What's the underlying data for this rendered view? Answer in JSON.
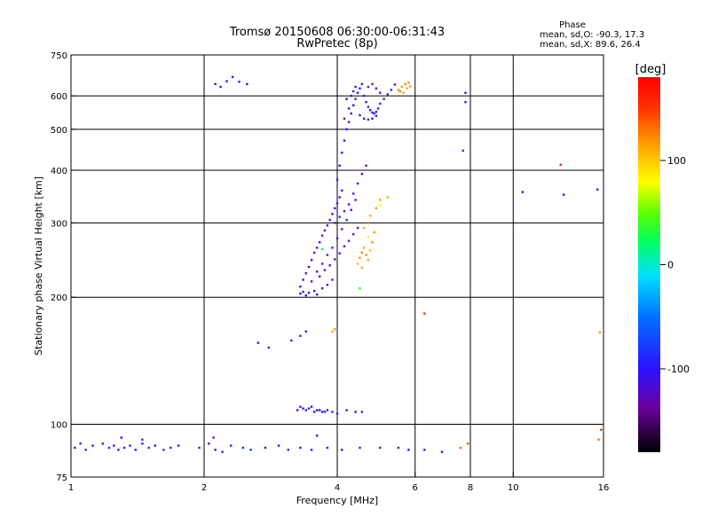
{
  "chart_data": {
    "type": "scatter",
    "title": "Tromsø 20150608 06:30:00-06:31:43",
    "subtitle": "RwPretec (8p)",
    "xlabel": "Frequency [MHz]",
    "ylabel": "Stationary phase Virtual Height [km]",
    "x_scale": "log",
    "y_scale": "log",
    "xlim": [
      1,
      16
    ],
    "ylim": [
      75,
      750
    ],
    "x_ticks": [
      1,
      2,
      4,
      6,
      8,
      10,
      16
    ],
    "y_ticks": [
      75,
      100,
      200,
      300,
      400,
      500,
      600,
      750
    ],
    "grid": true,
    "stats": {
      "heading": "Phase",
      "line_o": "mean, sd,O: -90.3, 17.3",
      "line_x": "mean, sd,X:  89.6, 26.4"
    },
    "colorbar": {
      "label": "[deg]",
      "range": [
        -180,
        180
      ],
      "ticks": [
        100,
        0,
        -100
      ]
    },
    "series": [
      {
        "points": [
          [
            1.02,
            88,
            -95
          ],
          [
            1.05,
            90,
            -90
          ],
          [
            1.08,
            87,
            -85
          ],
          [
            1.12,
            89,
            -100
          ],
          [
            1.18,
            90,
            -95
          ],
          [
            1.22,
            88,
            -80
          ],
          [
            1.25,
            89,
            -92
          ],
          [
            1.28,
            87,
            -98
          ],
          [
            1.32,
            88,
            -105
          ],
          [
            1.36,
            89,
            -90
          ],
          [
            1.4,
            87,
            -95
          ],
          [
            1.45,
            90,
            -88
          ],
          [
            1.5,
            88,
            -92
          ],
          [
            1.55,
            89,
            -110
          ],
          [
            1.62,
            87,
            -85
          ],
          [
            1.68,
            88,
            -94
          ],
          [
            1.75,
            89,
            -100
          ],
          [
            1.95,
            88,
            -92
          ],
          [
            2.05,
            90,
            -88
          ],
          [
            2.12,
            87,
            -95
          ],
          [
            2.2,
            86,
            -96
          ],
          [
            2.3,
            89,
            -95
          ],
          [
            2.45,
            88,
            -90
          ],
          [
            2.55,
            87,
            -84
          ],
          [
            2.75,
            88,
            -98
          ],
          [
            2.95,
            89,
            -100
          ],
          [
            3.1,
            87,
            -92
          ],
          [
            3.3,
            88,
            -105
          ],
          [
            3.5,
            87,
            -95
          ],
          [
            3.8,
            88,
            -90
          ],
          [
            4.1,
            87,
            -100
          ],
          [
            4.5,
            88,
            -92
          ],
          [
            5.0,
            88,
            -95
          ],
          [
            5.5,
            88,
            -90
          ],
          [
            5.8,
            87,
            -95
          ],
          [
            6.3,
            87,
            -90
          ],
          [
            6.9,
            86,
            -100
          ],
          [
            1.45,
            92,
            -80
          ],
          [
            1.3,
            93,
            -100
          ],
          [
            2.1,
            93,
            -85
          ],
          [
            3.6,
            94,
            -95
          ],
          [
            3.25,
            108,
            -98
          ],
          [
            3.3,
            110,
            -95
          ],
          [
            3.35,
            109,
            -100
          ],
          [
            3.4,
            108,
            -92
          ],
          [
            3.45,
            109,
            -90
          ],
          [
            3.55,
            107,
            -96
          ],
          [
            3.6,
            108,
            -100
          ],
          [
            3.65,
            108,
            -94
          ],
          [
            3.7,
            107,
            -98
          ],
          [
            3.75,
            107,
            -90
          ],
          [
            3.8,
            108,
            -95
          ],
          [
            3.9,
            107,
            -100
          ],
          [
            4.0,
            106,
            -92
          ],
          [
            4.2,
            108,
            -95
          ],
          [
            4.4,
            107,
            -98
          ],
          [
            3.5,
            110,
            -92
          ],
          [
            4.55,
            107,
            -95
          ],
          [
            3.15,
            158,
            -100
          ],
          [
            3.3,
            162,
            -95
          ],
          [
            3.4,
            166,
            -90
          ],
          [
            2.65,
            156,
            -98
          ],
          [
            2.8,
            152,
            -85
          ],
          [
            2.12,
            640,
            -115
          ],
          [
            2.18,
            630,
            -110
          ],
          [
            2.25,
            650,
            -112
          ],
          [
            2.32,
            665,
            -108
          ],
          [
            2.4,
            648,
            -100
          ],
          [
            2.5,
            640,
            -105
          ],
          [
            7.8,
            610,
            -110
          ],
          [
            7.8,
            580,
            -108
          ],
          [
            7.7,
            445,
            -80
          ],
          [
            10.5,
            355,
            -100
          ],
          [
            13.0,
            350,
            -110
          ],
          [
            15.5,
            360,
            -90
          ],
          [
            3.3,
            204,
            -100
          ],
          [
            3.35,
            206,
            -95
          ],
          [
            3.4,
            202,
            -98
          ],
          [
            3.45,
            205,
            -100
          ],
          [
            3.55,
            207,
            -92
          ],
          [
            3.6,
            203,
            -95
          ],
          [
            3.7,
            210,
            -90
          ],
          [
            3.8,
            214,
            -98
          ],
          [
            3.9,
            220,
            -95
          ],
          [
            3.3,
            212,
            -100
          ],
          [
            3.35,
            220,
            -95
          ],
          [
            3.4,
            228,
            -92
          ],
          [
            3.45,
            236,
            -98
          ],
          [
            3.5,
            245,
            -95
          ],
          [
            3.55,
            255,
            -90
          ],
          [
            3.6,
            262,
            -100
          ],
          [
            3.65,
            270,
            -95
          ],
          [
            3.7,
            280,
            -92
          ],
          [
            3.75,
            288,
            -98
          ],
          [
            3.8,
            296,
            -95
          ],
          [
            3.85,
            305,
            -90
          ],
          [
            3.9,
            315,
            -100
          ],
          [
            3.95,
            325,
            -95
          ],
          [
            4.0,
            334,
            -92
          ],
          [
            4.05,
            345,
            -98
          ],
          [
            4.1,
            358,
            -95
          ],
          [
            3.6,
            230,
            -100
          ],
          [
            3.7,
            240,
            -95
          ],
          [
            3.8,
            252,
            -90
          ],
          [
            3.9,
            262,
            -92
          ],
          [
            4.0,
            276,
            -98
          ],
          [
            4.1,
            290,
            -95
          ],
          [
            4.2,
            305,
            -90
          ],
          [
            4.3,
            322,
            -100
          ],
          [
            4.4,
            340,
            -95
          ],
          [
            3.5,
            218,
            -100
          ],
          [
            3.65,
            224,
            -95
          ],
          [
            3.75,
            232,
            -92
          ],
          [
            3.85,
            238,
            -98
          ],
          [
            3.95,
            246,
            -95
          ],
          [
            4.05,
            254,
            -90
          ],
          [
            4.15,
            264,
            -100
          ],
          [
            4.25,
            272,
            -95
          ],
          [
            4.35,
            282,
            -92
          ],
          [
            4.45,
            292,
            -98
          ],
          [
            3.95,
            300,
            -95
          ],
          [
            4.05,
            310,
            -90
          ],
          [
            4.15,
            320,
            -100
          ],
          [
            4.25,
            332,
            -95
          ],
          [
            4.35,
            352,
            -92
          ],
          [
            4.45,
            372,
            -98
          ],
          [
            4.55,
            392,
            -95
          ],
          [
            4.65,
            410,
            -90
          ],
          [
            4.0,
            380,
            -95
          ],
          [
            4.05,
            410,
            -100
          ],
          [
            4.1,
            440,
            -92
          ],
          [
            4.15,
            470,
            -98
          ],
          [
            4.2,
            500,
            -95
          ],
          [
            4.25,
            520,
            -90
          ],
          [
            4.3,
            545,
            -100
          ],
          [
            4.35,
            570,
            -95
          ],
          [
            4.4,
            590,
            -92
          ],
          [
            4.45,
            610,
            -98
          ],
          [
            4.5,
            625,
            -95
          ],
          [
            4.55,
            640,
            -90
          ],
          [
            4.6,
            600,
            -100
          ],
          [
            4.65,
            580,
            -95
          ],
          [
            4.7,
            565,
            -92
          ],
          [
            4.75,
            555,
            -98
          ],
          [
            4.8,
            548,
            -95
          ],
          [
            4.85,
            545,
            -90
          ],
          [
            4.9,
            550,
            -100
          ],
          [
            4.95,
            560,
            -95
          ],
          [
            5.0,
            575,
            -92
          ],
          [
            5.1,
            590,
            -98
          ],
          [
            5.2,
            605,
            -95
          ],
          [
            5.3,
            620,
            -90
          ],
          [
            5.4,
            638,
            -100
          ],
          [
            4.3,
            600,
            -95
          ],
          [
            4.35,
            615,
            -92
          ],
          [
            4.4,
            630,
            -98
          ],
          [
            4.7,
            630,
            -95
          ],
          [
            4.8,
            640,
            -90
          ],
          [
            4.9,
            625,
            -100
          ],
          [
            5.0,
            610,
            -95
          ],
          [
            4.5,
            540,
            -100
          ],
          [
            4.6,
            530,
            -95
          ],
          [
            4.7,
            527,
            -92
          ],
          [
            4.8,
            530,
            -98
          ],
          [
            4.9,
            538,
            -95
          ],
          [
            4.2,
            590,
            -100
          ],
          [
            4.25,
            560,
            -95
          ],
          [
            4.15,
            530,
            -92
          ],
          [
            5.5,
            620,
            120
          ],
          [
            5.6,
            630,
            118
          ],
          [
            5.7,
            640,
            125
          ],
          [
            5.75,
            625,
            110
          ],
          [
            5.8,
            645,
            122
          ],
          [
            5.65,
            610,
            115
          ],
          [
            5.55,
            615,
            128
          ],
          [
            5.85,
            632,
            120
          ],
          [
            4.45,
            240,
            110
          ],
          [
            4.5,
            248,
            118
          ],
          [
            4.55,
            255,
            125
          ],
          [
            4.6,
            262,
            112
          ],
          [
            4.65,
            252,
            120
          ],
          [
            4.7,
            245,
            115
          ],
          [
            4.75,
            258,
            105
          ],
          [
            4.8,
            270,
            122
          ],
          [
            4.85,
            285,
            118
          ],
          [
            4.6,
            292,
            110
          ],
          [
            4.7,
            300,
            125
          ],
          [
            4.75,
            312,
            115
          ],
          [
            4.9,
            325,
            120
          ],
          [
            4.55,
            235,
            112
          ],
          [
            5.0,
            340,
            118
          ],
          [
            5.2,
            345,
            108
          ],
          [
            4.7,
            278,
            75
          ],
          [
            5.0,
            330,
            80
          ],
          [
            3.9,
            166,
            115
          ],
          [
            3.95,
            168,
            120
          ],
          [
            4.5,
            210,
            30
          ],
          [
            3.7,
            260,
            25
          ],
          [
            6.3,
            183,
            150
          ],
          [
            12.8,
            412,
            160
          ],
          [
            15.7,
            165,
            120
          ],
          [
            15.8,
            97,
            150
          ],
          [
            15.6,
            92,
            130
          ],
          [
            7.9,
            90,
            140
          ],
          [
            7.6,
            88,
            135
          ]
        ]
      }
    ]
  }
}
